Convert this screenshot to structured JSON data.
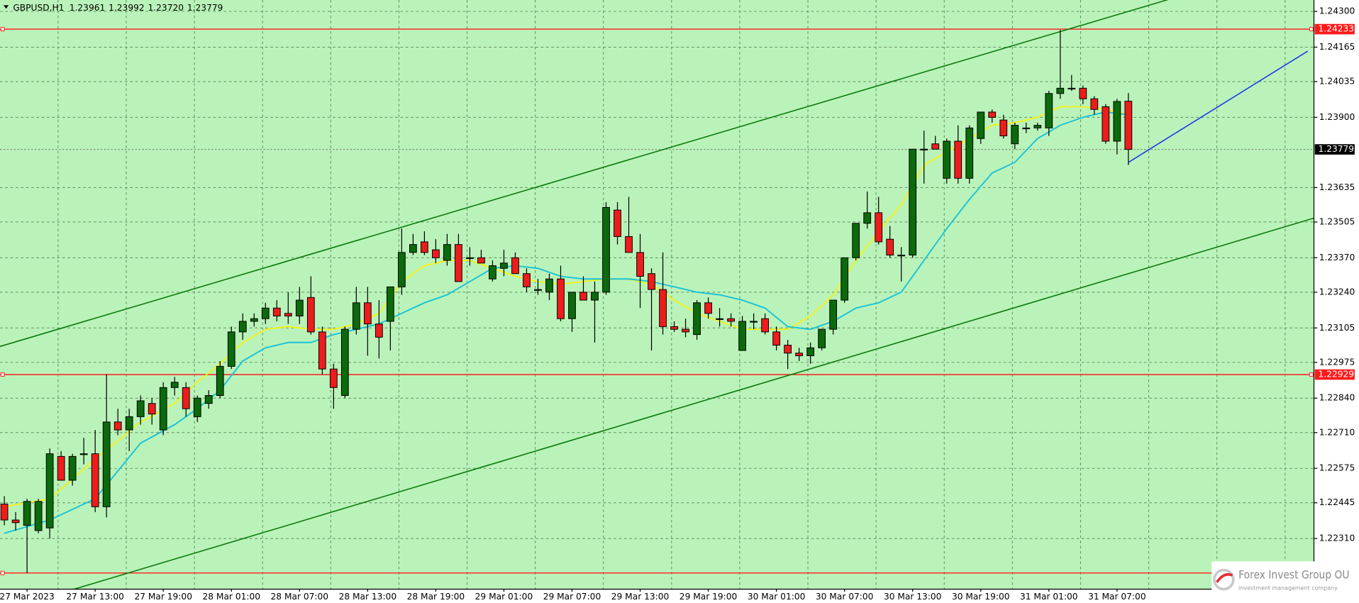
{
  "chart_data": {
    "type": "candlestick",
    "symbol": "GBPUSD,H1",
    "last_bar_labels": [
      "1.23961",
      "1.23992",
      "1.23720",
      "1.23779"
    ],
    "categories": [
      null,
      null,
      "27 Mar 2023",
      null,
      null,
      null,
      null,
      null,
      "27 Mar 13:00",
      null,
      null,
      null,
      null,
      null,
      "27 Mar 19:00",
      null,
      null,
      null,
      null,
      null,
      "28 Mar 01:00",
      null,
      null,
      null,
      null,
      null,
      "28 Mar 07:00",
      null,
      null,
      null,
      null,
      null,
      "28 Mar 13:00",
      null,
      null,
      null,
      null,
      null,
      "28 Mar 19:00",
      null,
      null,
      null,
      null,
      null,
      "29 Mar 01:00",
      null,
      null,
      null,
      null,
      null,
      "29 Mar 07:00",
      null,
      null,
      null,
      null,
      null,
      "29 Mar 13:00",
      null,
      null,
      null,
      null,
      null,
      "29 Mar 19:00",
      null,
      null,
      null,
      null,
      null,
      "30 Mar 01:00",
      null,
      null,
      null,
      null,
      null,
      "30 Mar 07:00",
      null,
      null,
      null,
      null,
      null,
      "30 Mar 13:00",
      null,
      null,
      null,
      null,
      null,
      "30 Mar 19:00",
      null,
      null,
      null,
      null,
      null,
      "31 Mar 01:00",
      null,
      null,
      null,
      null,
      null,
      "31 Mar 07:00",
      null
    ],
    "open": [
      1.2244,
      1.2238,
      1.2236,
      1.2234,
      1.2235,
      1.2262,
      1.2253,
      1.2263,
      1.2263,
      1.2243,
      1.2275,
      1.2272,
      1.2277,
      1.2282,
      1.2272,
      1.2288,
      1.2288,
      1.2277,
      1.2282,
      1.2285,
      1.2296,
      1.2309,
      1.2313,
      1.2314,
      1.2318,
      1.2316,
      1.2315,
      1.2322,
      1.2309,
      1.2295,
      1.2285,
      1.231,
      1.232,
      1.2312,
      1.2313,
      1.2326,
      1.2339,
      1.2343,
      1.234,
      1.2336,
      1.2342,
      1.2337,
      1.2337,
      1.2329,
      1.2333,
      1.2337,
      1.2331,
      1.2325,
      1.2324,
      1.2329,
      1.2314,
      1.2324,
      1.2321,
      1.2324,
      1.2355,
      1.2345,
      1.2339,
      1.2331,
      1.2325,
      1.2311,
      1.231,
      1.2308,
      1.232,
      1.2314,
      1.2314,
      1.2302,
      1.2313,
      1.2314,
      1.2309,
      1.2304,
      1.2301,
      1.23,
      1.2303,
      1.231,
      1.2321,
      1.2337,
      1.235,
      1.2354,
      1.2344,
      1.2338,
      1.2338,
      1.2378,
      1.238,
      1.2367,
      1.2381,
      1.2367,
      1.2382,
      1.2392,
      1.2389,
      1.238,
      1.2386,
      1.2386,
      1.2386,
      1.2399,
      1.2401,
      1.2401,
      1.2397,
      1.2394,
      1.2381,
      1.23961
    ],
    "high": [
      1.2247,
      1.2241,
      1.2246,
      1.2246,
      1.2265,
      1.2264,
      1.2263,
      1.2269,
      1.2272,
      1.2293,
      1.228,
      1.228,
      1.2285,
      1.2284,
      1.229,
      1.2292,
      1.229,
      1.2285,
      1.2287,
      1.2298,
      1.2311,
      1.2316,
      1.2316,
      1.232,
      1.2321,
      1.2324,
      1.2326,
      1.233,
      1.2311,
      1.2297,
      1.2311,
      1.2326,
      1.2326,
      1.2321,
      1.2326,
      1.2348,
      1.2346,
      1.2347,
      1.2344,
      1.2346,
      1.2346,
      1.2341,
      1.234,
      1.2336,
      1.234,
      1.2339,
      1.2333,
      1.2329,
      1.2331,
      1.2334,
      1.2324,
      1.233,
      1.2328,
      1.2358,
      1.2358,
      1.236,
      1.2346,
      1.2333,
      1.2339,
      1.2313,
      1.2314,
      1.2321,
      1.2322,
      1.2318,
      1.2316,
      1.2315,
      1.2316,
      1.2316,
      1.2311,
      1.2306,
      1.2303,
      1.2305,
      1.231,
      1.2321,
      1.2337,
      1.235,
      1.2362,
      1.236,
      1.2349,
      1.2341,
      1.2378,
      1.2385,
      1.2383,
      1.2382,
      1.2387,
      1.2387,
      1.2392,
      1.2393,
      1.2391,
      1.2388,
      1.2388,
      1.2388,
      1.24,
      1.2423,
      1.2406,
      1.2402,
      1.2398,
      1.2395,
      1.2397,
      1.23992
    ],
    "low": [
      1.2236,
      1.2234,
      1.2218,
      1.2233,
      1.2231,
      1.2253,
      1.2251,
      1.2259,
      1.2241,
      1.2239,
      1.227,
      1.2264,
      1.2274,
      1.2274,
      1.227,
      1.2285,
      1.2277,
      1.2275,
      1.228,
      1.2284,
      1.2295,
      1.2306,
      1.2311,
      1.2312,
      1.2313,
      1.2312,
      1.2312,
      1.2308,
      1.2293,
      1.228,
      1.2284,
      1.2308,
      1.23,
      1.2299,
      1.2302,
      1.2323,
      1.2338,
      1.2338,
      1.2335,
      1.2334,
      1.2328,
      1.2334,
      1.2335,
      1.2328,
      1.233,
      1.2331,
      1.2324,
      1.2323,
      1.2321,
      1.2313,
      1.2309,
      1.2321,
      1.2305,
      1.2323,
      1.2342,
      1.2339,
      1.2318,
      1.2302,
      1.2308,
      1.2309,
      1.2307,
      1.2306,
      1.2314,
      1.2311,
      1.2311,
      1.2302,
      1.231,
      1.2308,
      1.2302,
      1.2295,
      1.2298,
      1.2297,
      1.2302,
      1.2308,
      1.232,
      1.2336,
      1.2348,
      1.2342,
      1.2337,
      1.2328,
      1.2337,
      1.2365,
      1.2378,
      1.2365,
      1.2365,
      1.2365,
      1.238,
      1.2388,
      1.2382,
      1.2378,
      1.2384,
      1.2385,
      1.2383,
      1.2397,
      1.24,
      1.2395,
      1.2391,
      1.238,
      1.2376,
      1.2372
    ],
    "close": [
      1.2238,
      1.2237,
      1.2245,
      1.2245,
      1.2263,
      1.2253,
      1.2262,
      1.2263,
      1.2243,
      1.2275,
      1.2272,
      1.2277,
      1.2283,
      1.2278,
      1.2288,
      1.229,
      1.228,
      1.2284,
      1.2285,
      1.2296,
      1.2309,
      1.2313,
      1.2314,
      1.2318,
      1.2315,
      1.2315,
      1.2321,
      1.2309,
      1.2295,
      1.2288,
      1.231,
      1.232,
      1.2312,
      1.2307,
      1.2326,
      1.2339,
      1.2342,
      1.2339,
      1.2337,
      1.2342,
      1.2328,
      1.2337,
      1.2335,
      1.2334,
      1.2335,
      1.2331,
      1.2326,
      1.2325,
      1.2329,
      1.2314,
      1.2324,
      1.2321,
      1.2324,
      1.2356,
      1.2345,
      1.2339,
      1.233,
      1.2325,
      1.2311,
      1.231,
      1.2309,
      1.232,
      1.2316,
      1.2314,
      1.2313,
      1.2313,
      1.2313,
      1.2309,
      1.2304,
      1.2301,
      1.23,
      1.2303,
      1.231,
      1.2321,
      1.2337,
      1.235,
      1.2354,
      1.2343,
      1.2338,
      1.2338,
      1.2378,
      1.2378,
      1.2378,
      1.2381,
      1.2367,
      1.2386,
      1.2392,
      1.239,
      1.2383,
      1.2387,
      1.2386,
      1.2387,
      1.2399,
      1.2401,
      1.2401,
      1.2397,
      1.2393,
      1.2381,
      1.2396,
      1.23779
    ],
    "colors": {
      "up": "#0b6a0b",
      "down": "#ee1c1c",
      "background": "#baf3ba",
      "grid": "#5f8a5f",
      "axis": "#000000"
    },
    "ylim": [
      1.22119,
      1.24343
    ],
    "yticks": [
      {
        "value": 1.243,
        "label": "1.24300"
      },
      1.24165,
      1.24035,
      {
        "value": 1.239,
        "label": "1.23900"
      },
      1.23635,
      1.23505,
      {
        "value": 1.2337,
        "label": "1.23370"
      },
      {
        "value": 1.2324,
        "label": "1.23240"
      },
      1.23105,
      1.22975,
      {
        "value": 1.2284,
        "label": "1.22840"
      },
      {
        "value": 1.2271,
        "label": "1.22710"
      },
      1.22575,
      1.22445,
      {
        "value": 1.2231,
        "label": "1.22310"
      }
    ],
    "grid": true,
    "indicators": [
      {
        "color": "#f2f21a",
        "x": [
          0,
          4,
          8,
          12,
          15,
          17,
          19,
          21,
          23,
          25,
          27,
          29,
          31,
          33,
          35,
          37,
          39,
          41,
          43,
          45,
          47,
          49,
          51,
          53,
          55,
          57,
          59,
          61,
          63,
          65,
          67,
          69,
          71,
          73,
          75,
          77,
          79,
          81,
          83,
          85,
          87,
          89,
          91,
          93,
          95,
          97,
          99
        ],
        "values": [
          1.2243,
          1.2246,
          1.2261,
          1.2275,
          1.2282,
          1.229,
          1.2297,
          1.2305,
          1.231,
          1.2311,
          1.231,
          1.231,
          1.2312,
          1.2316,
          1.2328,
          1.2334,
          1.2336,
          1.2336,
          1.2333,
          1.233,
          1.2328,
          1.2327,
          1.2328,
          1.2329,
          1.2329,
          1.2327,
          1.2321,
          1.2316,
          1.2313,
          1.231,
          1.231,
          1.231,
          1.2315,
          1.2323,
          1.2336,
          1.2347,
          1.2357,
          1.2372,
          1.2377,
          1.2382,
          1.2387,
          1.2388,
          1.239,
          1.2394,
          1.2394,
          1.2393,
          1.2391
        ]
      },
      {
        "color": "#1cc3d6",
        "x": [
          0,
          4,
          8,
          12,
          15,
          17,
          19,
          21,
          23,
          25,
          27,
          29,
          31,
          33,
          35,
          37,
          39,
          41,
          43,
          45,
          47,
          49,
          51,
          53,
          55,
          57,
          59,
          61,
          63,
          65,
          67,
          69,
          71,
          73,
          75,
          77,
          79,
          81,
          83,
          85,
          87,
          89,
          91,
          93,
          95,
          97,
          99
        ],
        "values": [
          1.2233,
          1.2238,
          1.2246,
          1.2267,
          1.2274,
          1.228,
          1.2287,
          1.2298,
          1.2303,
          1.2305,
          1.2305,
          1.2308,
          1.231,
          1.2312,
          1.2316,
          1.232,
          1.2323,
          1.2328,
          1.2333,
          1.2334,
          1.2333,
          1.233,
          1.2329,
          1.2329,
          1.2329,
          1.2328,
          1.2326,
          1.2324,
          1.2323,
          1.2321,
          1.2318,
          1.2311,
          1.231,
          1.2313,
          1.2318,
          1.232,
          1.2324,
          1.2336,
          1.2348,
          1.2359,
          1.2369,
          1.2373,
          1.2382,
          1.2387,
          1.239,
          1.2392,
          1.2391
        ]
      }
    ],
    "levels": [
      {
        "value": 1.24233,
        "color": "#ff1a1a",
        "show_label": true
      },
      {
        "value": 1.22929,
        "color": "#ff1a1a",
        "show_label": true
      },
      {
        "value": 1.2218,
        "color": "#ff1a1a",
        "show_label": false
      }
    ],
    "trendlines": [
      {
        "color": "#0a7a0a",
        "x": [
          0,
          99
        ],
        "y": [
          1.2304,
          1.243
        ],
        "extend": true
      },
      {
        "color": "#0a7a0a",
        "x": [
          0,
          99
        ],
        "y": [
          1.2204,
          1.2331
        ],
        "extend": true
      },
      {
        "color": "#1a3ae6",
        "x": [
          99,
          114.8
        ],
        "y": [
          1.2373,
          1.2415
        ],
        "extend": false
      }
    ],
    "watermark": {
      "title": "Forex Invest Group OU",
      "subtitle": "investment management company"
    }
  }
}
